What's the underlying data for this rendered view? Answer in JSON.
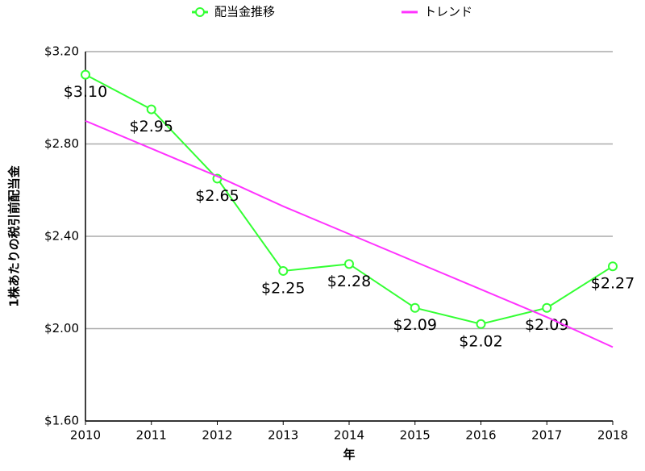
{
  "chart_data": {
    "type": "line",
    "x": [
      2010,
      2011,
      2012,
      2013,
      2014,
      2015,
      2016,
      2017,
      2018
    ],
    "xlim": [
      2010,
      2018
    ],
    "xticks": [
      2010,
      2011,
      2012,
      2013,
      2014,
      2015,
      2016,
      2017,
      2018
    ],
    "ylim": [
      1.6,
      3.2
    ],
    "yticks": [
      {
        "value": 1.6,
        "label": "$1.60"
      },
      {
        "value": 2.0,
        "label": "$2.00"
      },
      {
        "value": 2.4,
        "label": "$2.40"
      },
      {
        "value": 2.8,
        "label": "$2.80"
      },
      {
        "value": 3.2,
        "label": "$3.20"
      }
    ],
    "grid": true,
    "legend": "top",
    "xlabel": "年",
    "ylabel": "1株あたりの税引前配当金",
    "series": [
      {
        "name": "配当金推移",
        "color": "#33ff33",
        "markers": true,
        "values": [
          3.1,
          2.95,
          2.65,
          2.25,
          2.28,
          2.09,
          2.02,
          2.09,
          2.27
        ],
        "value_labels": [
          "$3.10",
          "$2.95",
          "$2.65",
          "$2.25",
          "$2.28",
          "$2.09",
          "$2.02",
          "$2.09",
          "$2.27"
        ]
      },
      {
        "name": "トレンド",
        "color": "#ff33ff",
        "markers": false,
        "values": [
          2.9,
          2.78,
          2.66,
          2.53,
          2.41,
          2.29,
          2.17,
          2.05,
          1.92
        ]
      }
    ]
  }
}
